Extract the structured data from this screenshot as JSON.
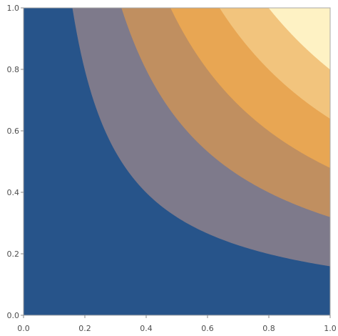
{
  "chart_data": {
    "type": "contour",
    "function": "x*y",
    "title": "",
    "xlabel": "",
    "ylabel": "",
    "xlim": [
      0,
      1
    ],
    "ylim": [
      0,
      1
    ],
    "x_ticks": [
      0.0,
      0.2,
      0.4,
      0.6,
      0.8,
      1.0
    ],
    "y_ticks": [
      0.0,
      0.2,
      0.4,
      0.6,
      0.8,
      1.0
    ],
    "x_tick_labels": [
      "0.0",
      "0.2",
      "0.4",
      "0.6",
      "0.8",
      "1.0"
    ],
    "y_tick_labels": [
      "0.0",
      "0.2",
      "0.4",
      "0.6",
      "0.8",
      "1.0"
    ],
    "levels": [
      0.0,
      0.16,
      0.32,
      0.48,
      0.64,
      0.8,
      1.0
    ],
    "colors": [
      "#27548a",
      "#7e7a8b",
      "#c08f60",
      "#e8a653",
      "#f2c47d",
      "#fef2c4"
    ],
    "grid": false,
    "legend": "none"
  }
}
